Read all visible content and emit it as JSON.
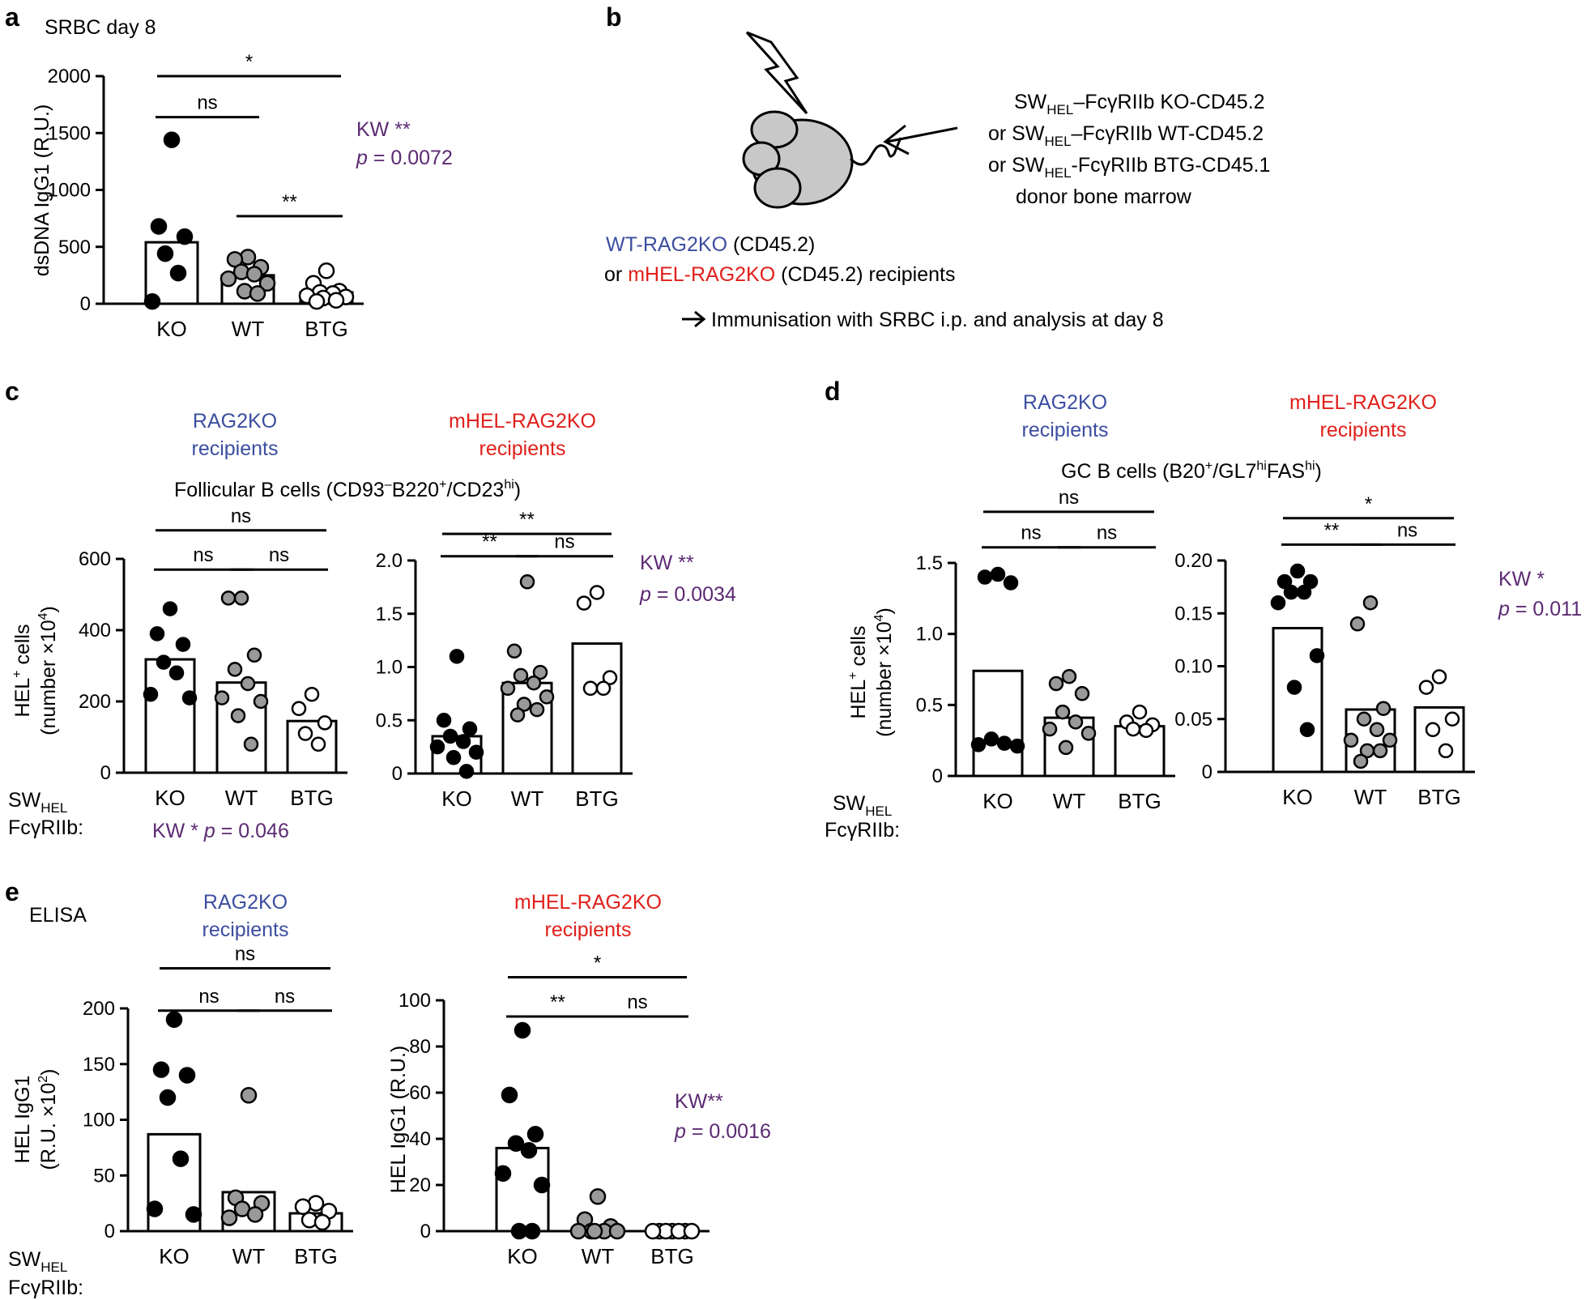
{
  "colors": {
    "blue": "#3c4ea0",
    "red": "#e0201b",
    "purple": "#5c2a73",
    "grey": "#999999"
  },
  "panel_a": {
    "letter": "a",
    "title": "SRBC day 8",
    "kw_line": "KW **",
    "p_prefix": "p",
    "p_suffix": " = 0.0072"
  },
  "panel_b": {
    "letter": "b",
    "donor": {
      "line1": {
        "a": "SW",
        "sub": "HEL",
        "b": "–FcγRIIb KO-CD45.2"
      },
      "line2": {
        "a": "or SW",
        "sub": "HEL",
        "b": "–FcγRIIb WT-CD45.2"
      },
      "line3": {
        "a": "or SW",
        "sub": "HEL",
        "b": "-FcγRIIb BTG-CD45.1"
      },
      "line4": "donor bone marrow"
    },
    "recipients": {
      "line1_colored": "WT-RAG2KO",
      "line1_rest": " (CD45.2)",
      "line2_or": "or ",
      "line2_colored": "mHEL-RAG2KO",
      "line2_rest": " (CD45.2) recipients"
    },
    "arrow_text": "Immunisation with SRBC i.p. and analysis at day 8"
  },
  "panel_c": {
    "letter": "c",
    "left_group": {
      "line1": "RAG2KO",
      "line2": "recipients"
    },
    "right_group": {
      "line1": "mHEL-RAG2KO",
      "line2": "recipients"
    },
    "subtitle": {
      "a": "Follicular B cells (CD93",
      "sup1": "–",
      "b": "B220",
      "sup2": "+",
      "c": "/CD23",
      "sup3": "hi",
      "d": ")"
    },
    "ylabel1": {
      "a": "HEL",
      "sup": "+",
      "b": " cells"
    },
    "ylabel2": {
      "a": "(number ×10",
      "sup": "4",
      "b": ")"
    },
    "row_label1": {
      "a": "SW",
      "sub": "HEL"
    },
    "row_label2": "FcγRIIb:",
    "kw_left": {
      "a": "KW * ",
      "p": "p",
      "b": " = 0.046"
    },
    "kw_right": {
      "a": "KW **",
      "p": "p",
      "b": " = 0.0034"
    }
  },
  "panel_d": {
    "letter": "d",
    "left_group": {
      "line1": "RAG2KO",
      "line2": "recipients"
    },
    "right_group": {
      "line1": "mHEL-RAG2KO",
      "line2": "recipients"
    },
    "subtitle": {
      "a": "GC B cells (B20",
      "sup1": "+",
      "b": "/GL7",
      "sup2": "hi",
      "c": "FAS",
      "sup3": "hi",
      "d": ")"
    },
    "ylabel1": {
      "a": "HEL",
      "sup": "+",
      "b": " cells"
    },
    "ylabel2": {
      "a": "(number ×10",
      "sup": "4",
      "b": ")"
    },
    "row_label1": {
      "a": "SW",
      "sub": "HEL"
    },
    "row_label2": "FcγRIIb:",
    "kw": {
      "a": "KW *",
      "p": "p",
      "b": " = 0.011"
    }
  },
  "panel_e": {
    "letter": "e",
    "assay": "ELISA",
    "left_group": {
      "line1": "RAG2KO",
      "line2": "recipients"
    },
    "right_group": {
      "line1": "mHEL-RAG2KO",
      "line2": "recipients"
    },
    "ylabel_left1": "HEL IgG1",
    "ylabel_left2": {
      "a": "(R.U. ×10",
      "sup": "2",
      "b": ")"
    },
    "ylabel_right": "HEL IgG1 (R.U.)",
    "row_label1": {
      "a": "SW",
      "sub": "HEL"
    },
    "row_label2": "FcγRIIb:",
    "kw": {
      "a": "KW**",
      "p": "p",
      "b": " = 0.0016"
    }
  },
  "chart_data": [
    {
      "id": "a",
      "type": "bar",
      "title": "SRBC day 8",
      "ylabel": "dsDNA IgG1 (R.U.)",
      "xlabel": "",
      "categories": [
        "KO",
        "WT",
        "BTG"
      ],
      "bar_heights": [
        540,
        250,
        100
      ],
      "ylim": [
        0,
        2000
      ],
      "yticks": [
        0,
        500,
        1000,
        1500,
        2000
      ],
      "ytick_labels": [
        "0",
        "500",
        "1000",
        "1500",
        "2000"
      ],
      "points": [
        [
          1440,
          680,
          590,
          440,
          270,
          20
        ],
        [
          410,
          390,
          320,
          280,
          260,
          220,
          180,
          110,
          90
        ],
        [
          290,
          180,
          110,
          100,
          90,
          70,
          60,
          50,
          30,
          20
        ]
      ],
      "point_fill": [
        "#000000",
        "#999999",
        "#ffffff"
      ],
      "comparisons": [
        {
          "from": 0,
          "to": 2,
          "label": "*",
          "level": 2000
        },
        {
          "from": 0,
          "to": 1,
          "label": "ns",
          "level": 1640
        },
        {
          "from": 1,
          "to": 2,
          "label": "**",
          "level": 770
        }
      ],
      "legend": "none"
    },
    {
      "id": "c-left",
      "type": "bar",
      "title": "RAG2KO recipients",
      "ylabel": "HEL+ cells (number ×10^4)",
      "xlabel": "",
      "categories": [
        "KO",
        "WT",
        "BTG"
      ],
      "bar_heights": [
        318,
        253,
        145
      ],
      "ylim": [
        0,
        600
      ],
      "yticks": [
        0,
        200,
        400,
        600
      ],
      "ytick_labels": [
        "0",
        "200",
        "400",
        "600"
      ],
      "points": [
        [
          460,
          390,
          360,
          310,
          280,
          220,
          210
        ],
        [
          490,
          490,
          330,
          290,
          250,
          210,
          200,
          160,
          80
        ],
        [
          220,
          180,
          140,
          110,
          80
        ]
      ],
      "point_fill": [
        "#000000",
        "#999999",
        "#ffffff"
      ],
      "comparisons": [
        {
          "from": 0,
          "to": 2,
          "label": "ns",
          "level": 680
        },
        {
          "from": 0,
          "to": 1,
          "label": "ns",
          "level": 570
        },
        {
          "from": 1,
          "to": 2,
          "label": "ns",
          "level": 570
        }
      ],
      "legend": "none"
    },
    {
      "id": "c-right",
      "type": "bar",
      "title": "mHEL-RAG2KO recipients",
      "ylabel": "",
      "xlabel": "",
      "categories": [
        "KO",
        "WT",
        "BTG"
      ],
      "bar_heights": [
        0.35,
        0.85,
        1.22
      ],
      "ylim": [
        0,
        2.0
      ],
      "yticks": [
        0,
        0.5,
        1.0,
        1.5,
        2.0
      ],
      "ytick_labels": [
        "0",
        "0.5",
        "1.0",
        "1.5",
        "2.0"
      ],
      "points": [
        [
          1.1,
          0.5,
          0.42,
          0.35,
          0.3,
          0.25,
          0.2,
          0.15,
          0.02
        ],
        [
          1.8,
          1.15,
          0.95,
          0.92,
          0.85,
          0.8,
          0.72,
          0.65,
          0.6,
          0.55
        ],
        [
          1.7,
          1.6,
          0.9,
          0.8,
          0.8
        ]
      ],
      "point_fill": [
        "#000000",
        "#999999",
        "#ffffff"
      ],
      "comparisons": [
        {
          "from": 0,
          "to": 2,
          "label": "**",
          "level": 2.25
        },
        {
          "from": 0,
          "to": 1,
          "label": "**",
          "level": 2.04
        },
        {
          "from": 1,
          "to": 2,
          "label": "ns",
          "level": 2.04
        }
      ],
      "legend": "none"
    },
    {
      "id": "d-left",
      "type": "bar",
      "title": "RAG2KO recipients",
      "ylabel": "HEL+ cells (number ×10^4)",
      "xlabel": "",
      "categories": [
        "KO",
        "WT",
        "BTG"
      ],
      "bar_heights": [
        0.74,
        0.41,
        0.35
      ],
      "ylim": [
        0,
        1.5
      ],
      "yticks": [
        0,
        0.5,
        1.0,
        1.5
      ],
      "ytick_labels": [
        "0",
        "0.5",
        "1.0",
        "1.5"
      ],
      "points": [
        [
          1.42,
          1.4,
          1.36,
          0.26,
          0.23,
          0.22,
          0.21
        ],
        [
          0.7,
          0.65,
          0.58,
          0.45,
          0.38,
          0.33,
          0.3,
          0.2
        ],
        [
          0.45,
          0.38,
          0.36,
          0.33,
          0.32
        ]
      ],
      "point_fill": [
        "#000000",
        "#999999",
        "#ffffff"
      ],
      "comparisons": [
        {
          "from": 0,
          "to": 2,
          "label": "ns",
          "level": 1.86
        },
        {
          "from": 0,
          "to": 1,
          "label": "ns",
          "level": 1.61
        },
        {
          "from": 1,
          "to": 2,
          "label": "ns",
          "level": 1.61
        }
      ],
      "legend": "none"
    },
    {
      "id": "d-right",
      "type": "bar",
      "title": "mHEL-RAG2KO recipients",
      "ylabel": "",
      "xlabel": "",
      "categories": [
        "KO",
        "WT",
        "BTG"
      ],
      "bar_heights": [
        0.136,
        0.059,
        0.061
      ],
      "ylim": [
        0,
        0.2
      ],
      "yticks": [
        0,
        0.05,
        0.1,
        0.15,
        0.2
      ],
      "ytick_labels": [
        "0",
        "0.05",
        "0.10",
        "0.15",
        "0.20"
      ],
      "points": [
        [
          0.19,
          0.18,
          0.18,
          0.17,
          0.17,
          0.16,
          0.11,
          0.08,
          0.04
        ],
        [
          0.16,
          0.14,
          0.06,
          0.05,
          0.04,
          0.03,
          0.03,
          0.02,
          0.02,
          0.01
        ],
        [
          0.09,
          0.08,
          0.05,
          0.04,
          0.02
        ]
      ],
      "point_fill": [
        "#000000",
        "#999999",
        "#ffffff"
      ],
      "comparisons": [
        {
          "from": 0,
          "to": 2,
          "label": "*",
          "level": 0.24
        },
        {
          "from": 0,
          "to": 1,
          "label": "**",
          "level": 0.215
        },
        {
          "from": 1,
          "to": 2,
          "label": "ns",
          "level": 0.215
        }
      ],
      "legend": "none"
    },
    {
      "id": "e-left",
      "type": "bar",
      "title": "RAG2KO recipients",
      "ylabel": "HEL IgG1 (R.U. ×10^2)",
      "xlabel": "",
      "categories": [
        "KO",
        "WT",
        "BTG"
      ],
      "bar_heights": [
        87,
        35,
        16
      ],
      "ylim": [
        0,
        200
      ],
      "yticks": [
        0,
        50,
        100,
        150,
        200
      ],
      "ytick_labels": [
        "0",
        "50",
        "100",
        "150",
        "200"
      ],
      "points": [
        [
          190,
          145,
          140,
          120,
          65,
          20,
          15
        ],
        [
          122,
          30,
          25,
          20,
          15,
          12
        ],
        [
          25,
          22,
          18,
          10,
          8
        ]
      ],
      "point_fill": [
        "#000000",
        "#999999",
        "#ffffff"
      ],
      "comparisons": [
        {
          "from": 0,
          "to": 2,
          "label": "ns",
          "level": 236
        },
        {
          "from": 0,
          "to": 1,
          "label": "ns",
          "level": 198
        },
        {
          "from": 1,
          "to": 2,
          "label": "ns",
          "level": 198
        }
      ],
      "legend": "none"
    },
    {
      "id": "e-right",
      "type": "bar",
      "title": "mHEL-RAG2KO recipients",
      "ylabel": "HEL IgG1 (R.U.)",
      "xlabel": "",
      "categories": [
        "KO",
        "WT",
        "BTG"
      ],
      "bar_heights": [
        36,
        1,
        0
      ],
      "ylim": [
        0,
        100
      ],
      "yticks": [
        0,
        20,
        40,
        60,
        80,
        100
      ],
      "ytick_labels": [
        "0",
        "20",
        "40",
        "60",
        "80",
        "100"
      ],
      "points": [
        [
          87,
          59,
          42,
          38,
          35,
          25,
          20,
          0,
          0
        ],
        [
          15,
          5,
          2,
          0,
          0,
          0,
          0,
          0
        ],
        [
          0,
          0,
          0,
          0,
          0,
          0,
          0
        ]
      ],
      "point_fill": [
        "#000000",
        "#999999",
        "#ffffff"
      ],
      "comparisons": [
        {
          "from": 0,
          "to": 2,
          "label": "*",
          "level": 110
        },
        {
          "from": 0,
          "to": 1,
          "label": "**",
          "level": 93
        },
        {
          "from": 1,
          "to": 2,
          "label": "ns",
          "level": 93
        }
      ],
      "legend": "none"
    }
  ]
}
